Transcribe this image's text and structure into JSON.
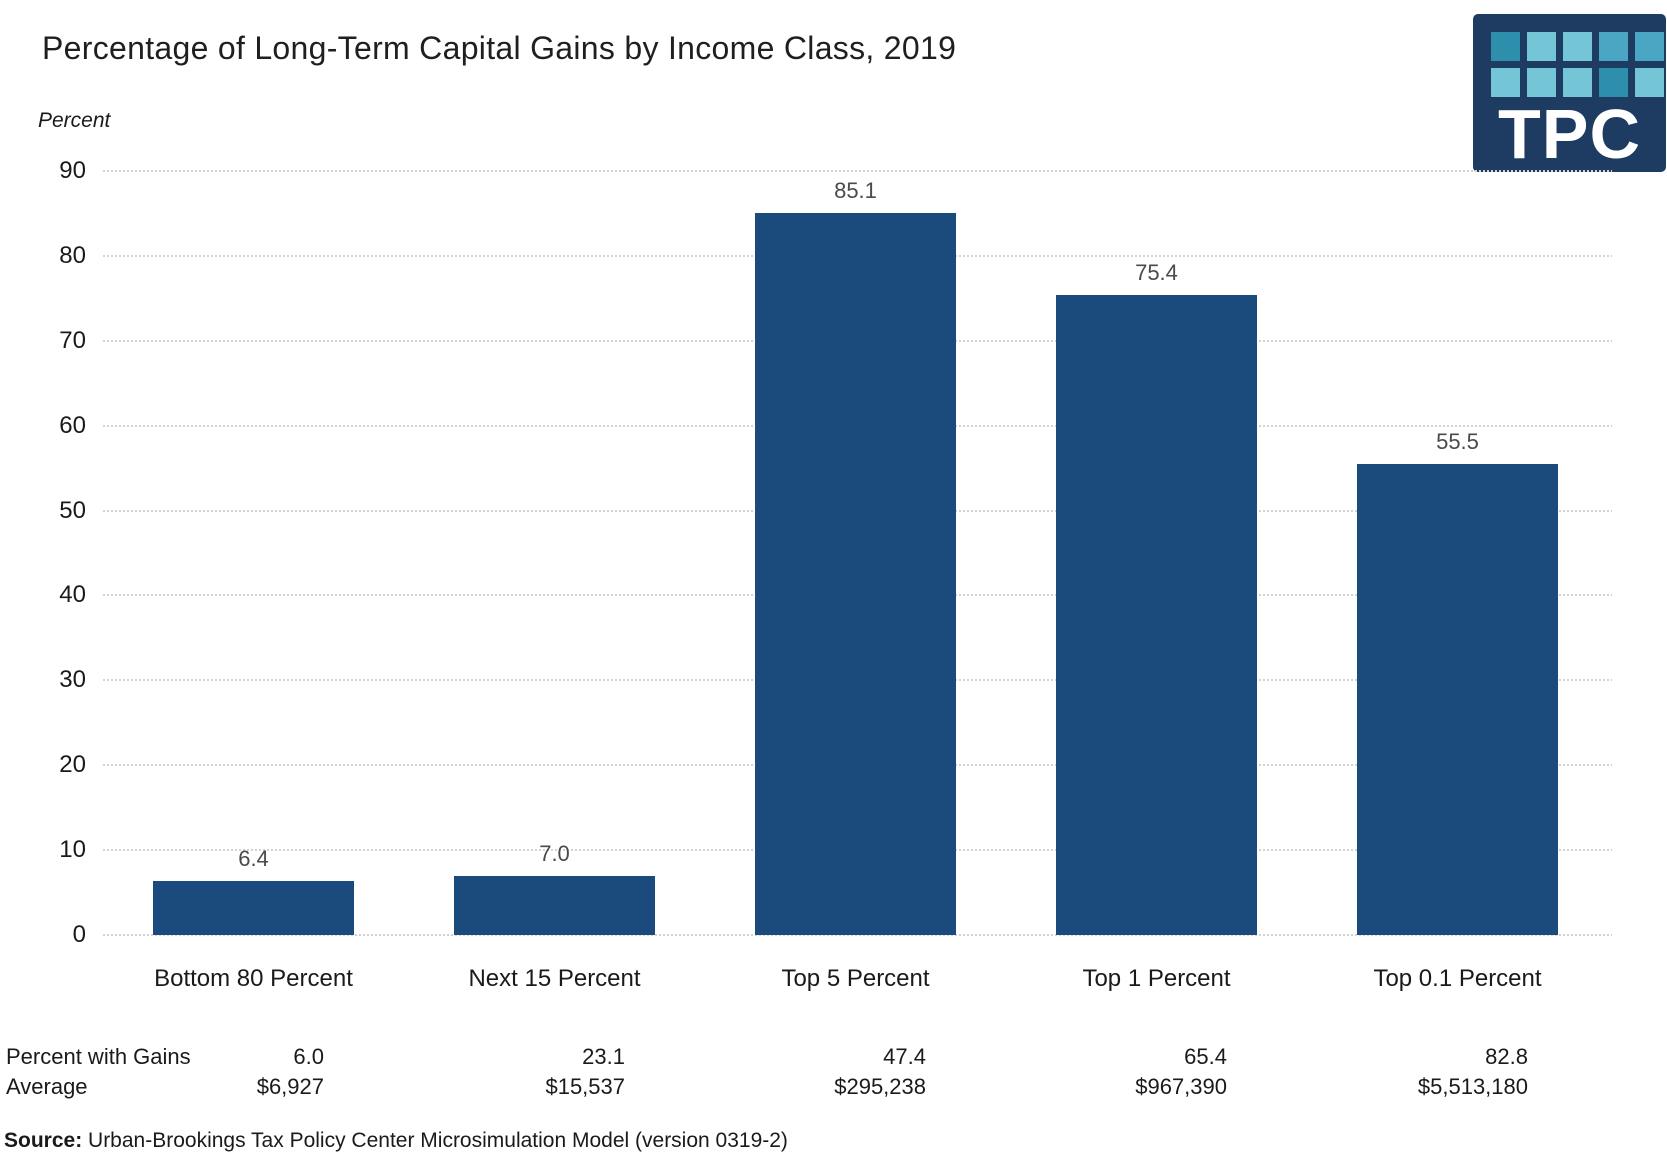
{
  "header": {
    "title": "Percentage of Long-Term Capital Gains by Income Class, 2019"
  },
  "logo": {
    "text": "TPC",
    "bg_color": "#1E3C61",
    "square_palette": {
      "dark": "#2E8FAD",
      "light": "#74C6D6",
      "medium": "#4BA6C3"
    },
    "squares": [
      "dark",
      "light",
      "light",
      "medium",
      "medium",
      "light",
      "light",
      "light",
      "dark",
      "light"
    ]
  },
  "chart_data": {
    "type": "bar",
    "title": "Percentage of Long-Term Capital Gains by Income Class, 2019",
    "axis_title": "Percent",
    "categories": [
      "Bottom 80 Percent",
      "Next 15 Percent",
      "Top 5 Percent",
      "Top 1 Percent",
      "Top 0.1 Percent"
    ],
    "values": [
      6.4,
      7.0,
      85.1,
      75.4,
      55.5
    ],
    "value_labels": [
      "6.4",
      "7.0",
      "85.1",
      "75.4",
      "55.5"
    ],
    "ylim": [
      0,
      90
    ],
    "yticks": [
      0,
      10,
      20,
      30,
      40,
      50,
      60,
      70,
      80,
      90
    ],
    "grid": "horizontal-dotted",
    "legend": "none",
    "bar_color": "#1A4B7C"
  },
  "table": {
    "rows": [
      {
        "label": "Percent with Gains",
        "values": [
          "6.0",
          "23.1",
          "47.4",
          "65.4",
          "82.8"
        ]
      },
      {
        "label": "Average",
        "values": [
          "$6,927",
          "$15,537",
          "$295,238",
          "$967,390",
          "$5,513,180"
        ]
      }
    ]
  },
  "source": {
    "label": "Source:",
    "text": " Urban-Brookings Tax Policy Center Microsimulation Model (version 0319-2)"
  }
}
